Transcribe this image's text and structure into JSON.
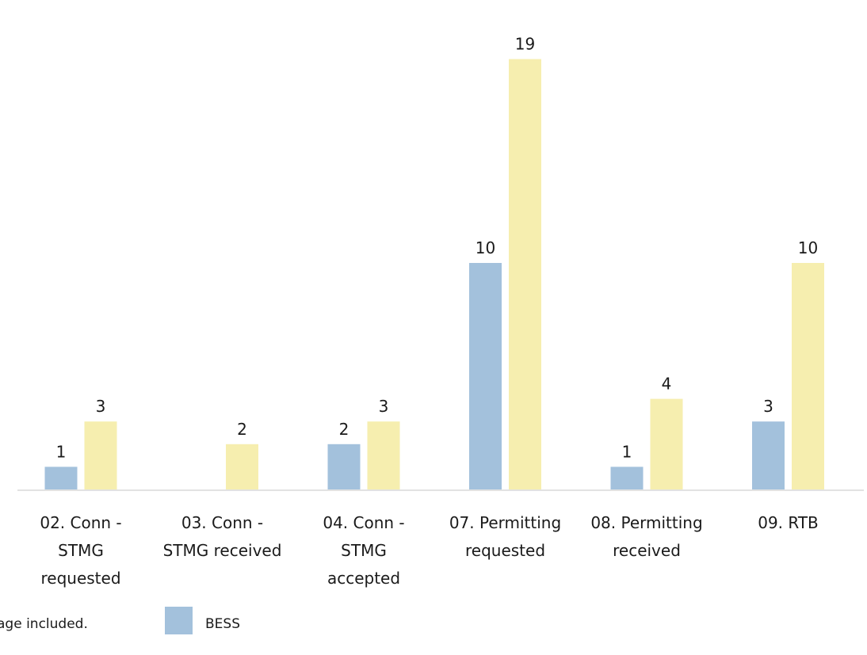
{
  "chart_data": {
    "type": "bar",
    "categories": [
      "02. Conn - STMG requested",
      "03. Conn - STMG received",
      "04. Conn - STMG accepted",
      "07. Permitting requested",
      "08. Permitting received",
      "09. RTB"
    ],
    "category_lines": [
      [
        "02. Conn -",
        "STMG",
        "requested"
      ],
      [
        "03. Conn -",
        "STMG received"
      ],
      [
        "04. Conn -",
        "STMG",
        "accepted"
      ],
      [
        "07. Permitting",
        "requested"
      ],
      [
        "08. Permitting",
        "received"
      ],
      [
        "09. RTB"
      ]
    ],
    "series": [
      {
        "name": "BESS",
        "color": "#a3c1dc",
        "values": [
          1,
          null,
          2,
          10,
          1,
          3
        ]
      },
      {
        "color": "#f6eeaf",
        "values": [
          3,
          2,
          3,
          19,
          4,
          10
        ]
      }
    ],
    "ylim": [
      0,
      20
    ],
    "grid": false,
    "legend": "bottom",
    "footnote": "age included."
  }
}
